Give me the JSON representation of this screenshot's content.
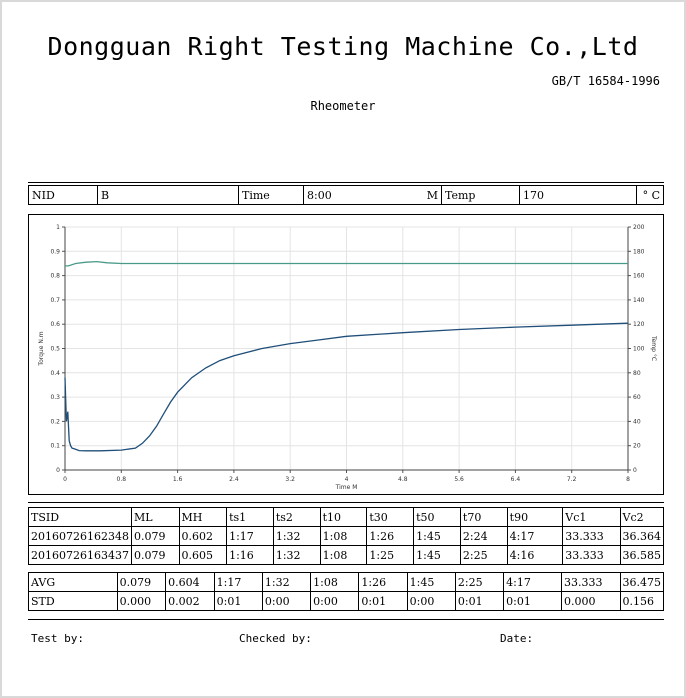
{
  "header": {
    "company": "Dongguan Right Testing Machine Co.,Ltd",
    "standard": "GB/T 16584-1996",
    "title": "Rheometer"
  },
  "info": {
    "nid_label": "NID",
    "nid_value": "B",
    "time_label": "Time",
    "time_value": "8:00",
    "time_unit": "M",
    "temp_label": "Temp",
    "temp_value": "170",
    "temp_unit": "° C"
  },
  "results": {
    "headers": [
      "TSID",
      "ML",
      "MH",
      "ts1",
      "ts2",
      "t10",
      "t30",
      "t50",
      "t70",
      "t90",
      "Vc1",
      "Vc2"
    ],
    "rows": [
      [
        "20160726162348",
        "0.079",
        "0.602",
        "1:17",
        "1:32",
        "1:08",
        "1:26",
        "1:45",
        "2:24",
        "4:17",
        "33.333",
        "36.364"
      ],
      [
        "20160726163437",
        "0.079",
        "0.605",
        "1:16",
        "1:32",
        "1:08",
        "1:25",
        "1:45",
        "2:25",
        "4:16",
        "33.333",
        "36.585"
      ]
    ],
    "summary": [
      [
        "AVG",
        "0.079",
        "0.604",
        "1:17",
        "1:32",
        "1:08",
        "1:26",
        "1:45",
        "2:25",
        "4:17",
        "33.333",
        "36.475"
      ],
      [
        "STD",
        "0.000",
        "0.002",
        "0:01",
        "0:00",
        "0:00",
        "0:01",
        "0:00",
        "0:01",
        "0:01",
        "0.000",
        "0.156"
      ]
    ]
  },
  "footer": {
    "test_by": "Test by:",
    "checked_by": "Checked by:",
    "date": "Date:"
  },
  "chart_data": {
    "type": "line",
    "xlabel": "Time M",
    "ylabel": "Torque N.m",
    "y2label": "Temp °C",
    "xlim": [
      0,
      8
    ],
    "ylim": [
      0,
      1
    ],
    "y2lim": [
      0,
      200
    ],
    "x_ticks": [
      "0",
      "0.8",
      "1.6",
      "2.4",
      "3.2",
      "4",
      "4.8",
      "5.6",
      "6.4",
      "7.2",
      "8"
    ],
    "y_ticks": [
      "0",
      "0.1",
      "0.2",
      "0.3",
      "0.4",
      "0.5",
      "0.6",
      "0.7",
      "0.8",
      "0.9",
      "1"
    ],
    "y2_ticks": [
      "0",
      "20",
      "40",
      "60",
      "80",
      "100",
      "120",
      "140",
      "160",
      "180",
      "200"
    ],
    "grid": true,
    "series": [
      {
        "axis": "left",
        "color": "#1f4e79",
        "x": [
          0,
          0.02,
          0.04,
          0.06,
          0.08,
          0.1,
          0.15,
          0.2,
          0.3,
          0.5,
          0.8,
          1.0,
          1.1,
          1.2,
          1.3,
          1.4,
          1.5,
          1.6,
          1.8,
          2.0,
          2.2,
          2.4,
          2.8,
          3.2,
          3.6,
          4.0,
          4.8,
          5.6,
          6.4,
          7.2,
          8.0
        ],
        "y": [
          0.38,
          0.2,
          0.24,
          0.12,
          0.1,
          0.09,
          0.085,
          0.08,
          0.079,
          0.079,
          0.082,
          0.09,
          0.11,
          0.14,
          0.18,
          0.23,
          0.28,
          0.32,
          0.38,
          0.42,
          0.45,
          0.47,
          0.5,
          0.52,
          0.535,
          0.55,
          0.565,
          0.578,
          0.588,
          0.596,
          0.604
        ]
      },
      {
        "axis": "right",
        "color": "#4a9a8a",
        "x": [
          0,
          0.05,
          0.15,
          0.3,
          0.45,
          0.6,
          0.8,
          1.2,
          2.0,
          3.0,
          4.0,
          5.0,
          6.0,
          7.0,
          8.0
        ],
        "y": [
          168,
          168,
          170,
          171,
          171.5,
          170.5,
          170,
          170,
          170,
          170,
          170,
          170,
          170,
          170,
          170
        ]
      }
    ]
  }
}
